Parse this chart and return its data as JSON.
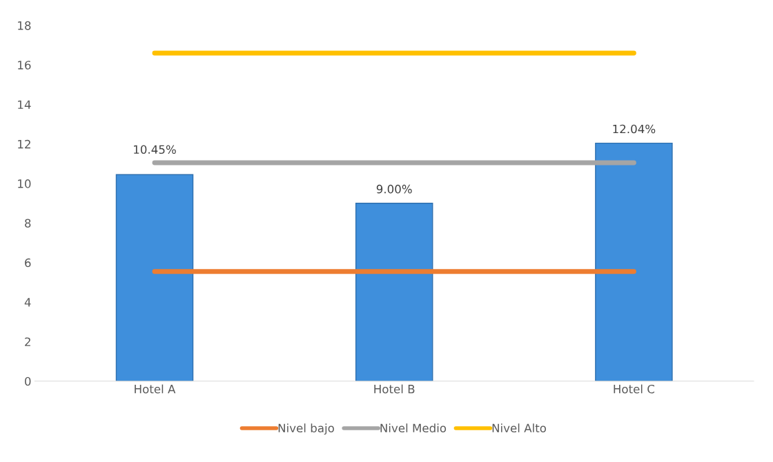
{
  "chart_data": {
    "type": "bar",
    "categories": [
      "Hotel A",
      "Hotel B",
      "Hotel C"
    ],
    "series": [
      {
        "color": "#3f8fdc",
        "values": [
          10.45,
          9.0,
          12.04
        ],
        "value_labels": [
          "10.45%",
          "9.00%",
          "12.04%"
        ]
      },
      {
        "type": "line",
        "name": "Nivel bajo",
        "color": "#ed7d31",
        "values": [
          5.55,
          5.55,
          5.55
        ]
      },
      {
        "type": "line",
        "name": "Nivel Medio",
        "color": "#a5a5a5",
        "values": [
          11.05,
          11.05,
          11.05
        ]
      },
      {
        "type": "line",
        "name": "Nivel Alto",
        "color": "#ffc000",
        "values": [
          16.6,
          16.6,
          16.6
        ]
      }
    ],
    "ylim": [
      0,
      18
    ],
    "yticks": [
      0,
      2,
      4,
      6,
      8,
      10,
      12,
      14,
      16,
      18
    ],
    "grid": false,
    "legend": "bottom"
  }
}
